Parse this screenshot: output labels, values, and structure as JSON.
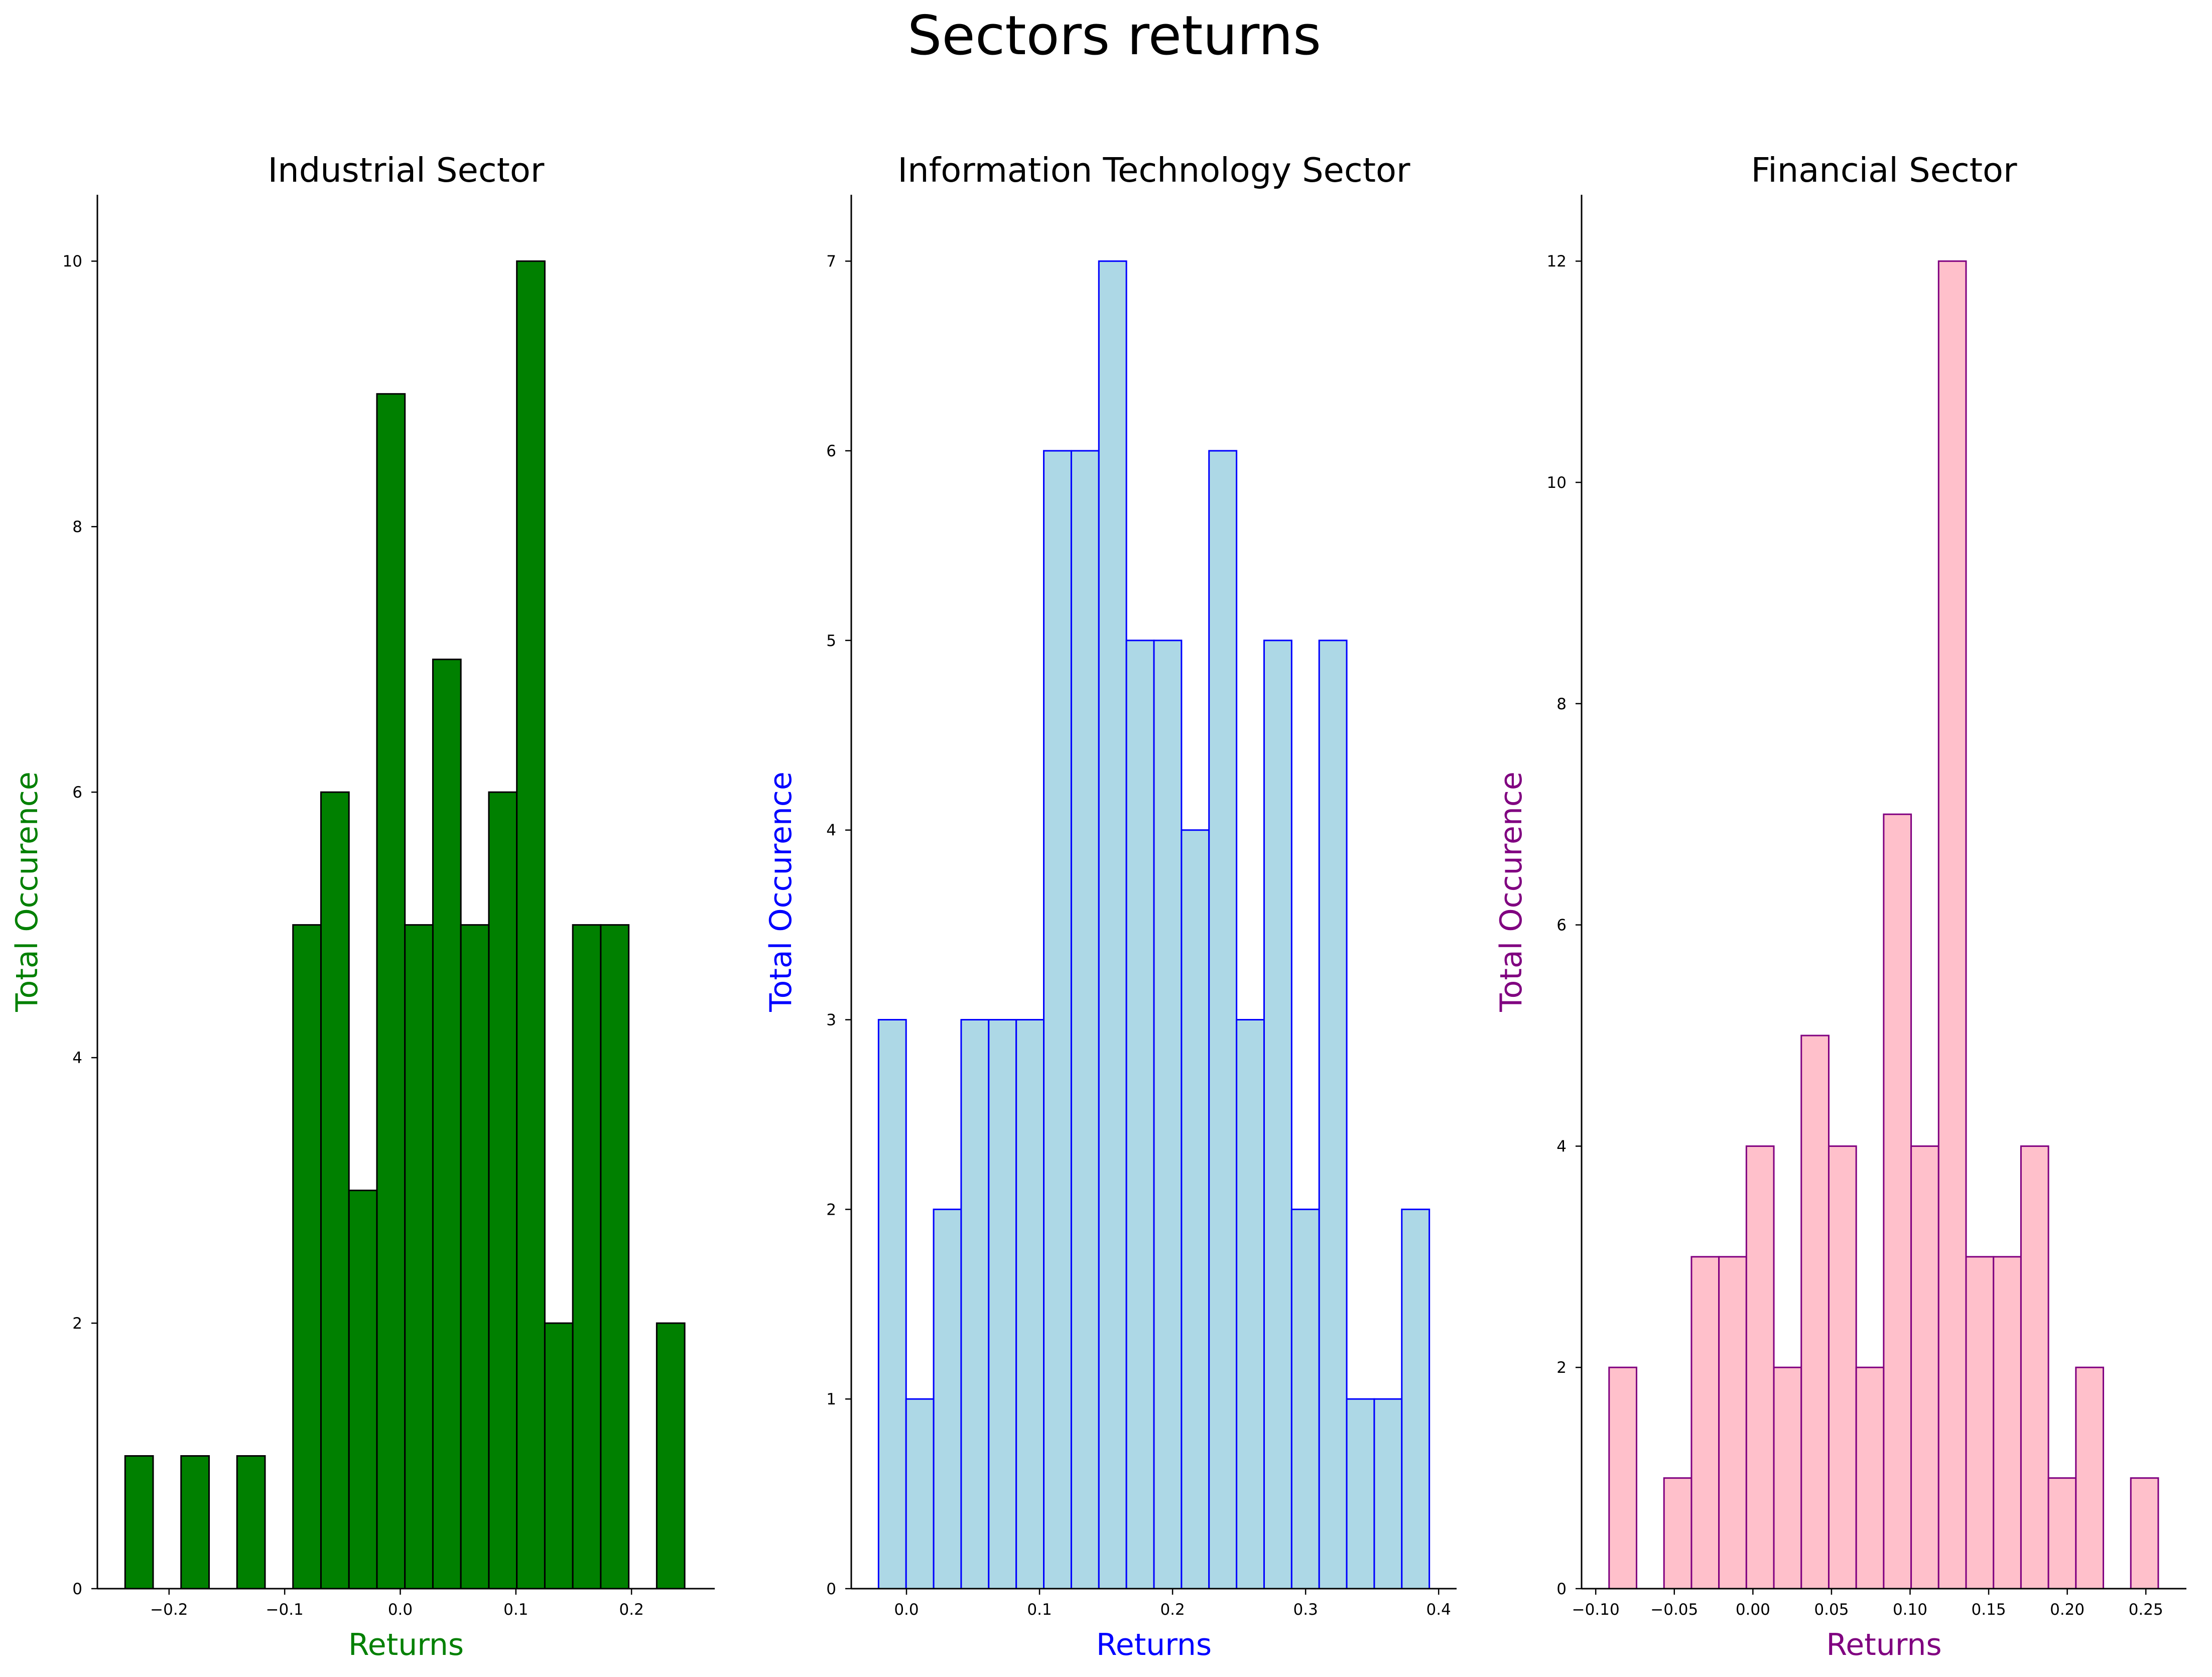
{
  "suptitle": "Sectors returns",
  "chart_data": [
    {
      "type": "histogram",
      "title": "Industrial Sector",
      "xlabel": "Returns",
      "ylabel": "Total Occurence",
      "label_color": "#008000",
      "bar_color": "#008000",
      "edge_color": "#000000",
      "bin_start": -0.238,
      "bin_width": 0.0242,
      "counts": [
        1,
        0,
        1,
        0,
        1,
        0,
        5,
        6,
        3,
        9,
        5,
        7,
        5,
        6,
        10,
        2,
        5,
        5,
        0,
        2
      ],
      "xlim": [
        -0.262,
        0.272
      ],
      "ylim": [
        0,
        10.5
      ],
      "xticks": [
        -0.2,
        -0.1,
        0.0,
        0.1,
        0.2
      ],
      "xtick_labels": [
        "−0.2",
        "−0.1",
        "0.0",
        "0.1",
        "0.2"
      ],
      "yticks": [
        0,
        2,
        4,
        6,
        8,
        10
      ],
      "ytick_labels": [
        "0",
        "2",
        "4",
        "6",
        "8",
        "10"
      ]
    },
    {
      "type": "histogram",
      "title": "Information Technology Sector",
      "xlabel": "Returns",
      "ylabel": "Total Occurence",
      "label_color": "#0000ff",
      "bar_color": "#add8e6",
      "edge_color": "#0000ff",
      "bin_start": -0.021,
      "bin_width": 0.0207,
      "counts": [
        3,
        1,
        2,
        3,
        3,
        3,
        6,
        6,
        7,
        5,
        5,
        4,
        6,
        3,
        5,
        2,
        5,
        1,
        1,
        2
      ],
      "xlim": [
        -0.0415,
        0.4135
      ],
      "ylim": [
        0,
        7.35
      ],
      "xticks": [
        0.0,
        0.1,
        0.2,
        0.3,
        0.4
      ],
      "xtick_labels": [
        "0.0",
        "0.1",
        "0.2",
        "0.3",
        "0.4"
      ],
      "yticks": [
        0,
        1,
        2,
        3,
        4,
        5,
        6,
        7
      ],
      "ytick_labels": [
        "0",
        "1",
        "2",
        "3",
        "4",
        "5",
        "6",
        "7"
      ]
    },
    {
      "type": "histogram",
      "title": "Financial Sector",
      "xlabel": "Returns",
      "ylabel": "Total Occurence",
      "label_color": "#800080",
      "bar_color": "#ffc0cb",
      "edge_color": "#800080",
      "bin_start": -0.0915,
      "bin_width": 0.01747,
      "counts": [
        2,
        0,
        1,
        3,
        3,
        4,
        2,
        5,
        4,
        2,
        7,
        4,
        12,
        3,
        3,
        4,
        1,
        2,
        0,
        1
      ],
      "xlim": [
        -0.109,
        0.2758
      ],
      "ylim": [
        0,
        12.6
      ],
      "xticks": [
        -0.1,
        -0.05,
        0.0,
        0.05,
        0.1,
        0.15,
        0.2,
        0.25
      ],
      "xtick_labels": [
        "−0.10",
        "−0.05",
        "0.00",
        "0.05",
        "0.10",
        "0.15",
        "0.20",
        "0.25"
      ],
      "yticks": [
        0,
        2,
        4,
        6,
        8,
        10,
        12
      ],
      "ytick_labels": [
        "0",
        "2",
        "4",
        "6",
        "8",
        "10",
        "12"
      ]
    }
  ]
}
